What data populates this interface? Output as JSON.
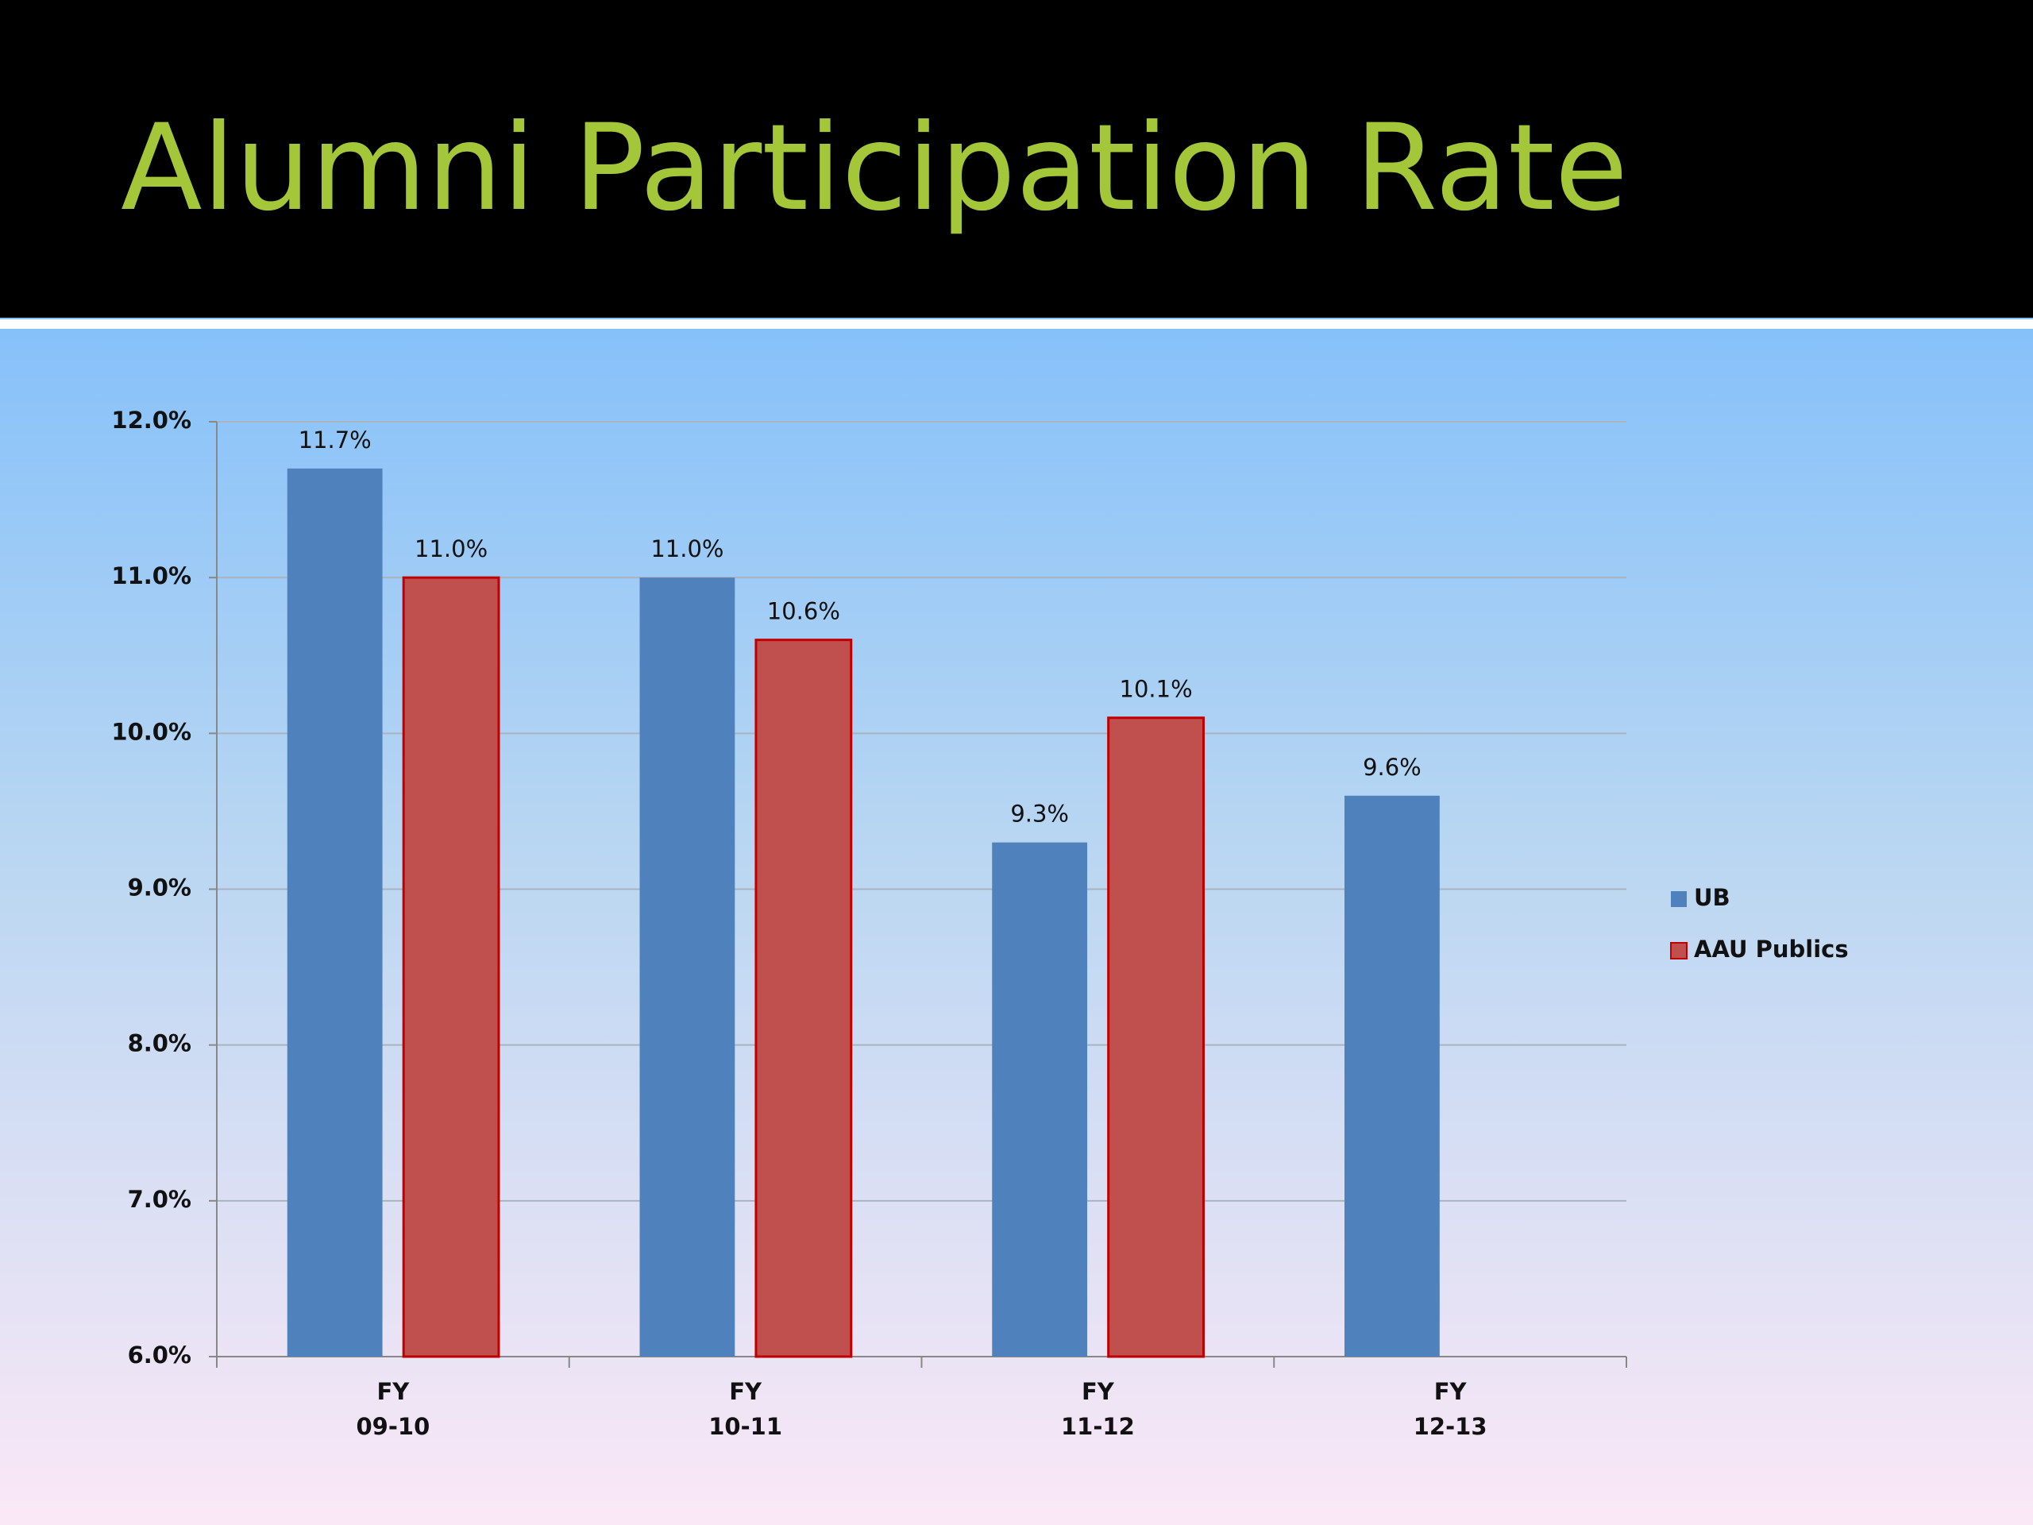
{
  "chart_data": {
    "type": "bar",
    "title": "Alumni Participation Rate",
    "categories": [
      [
        "FY",
        "09-10"
      ],
      [
        "FY",
        "10-11"
      ],
      [
        "FY",
        "11-12"
      ],
      [
        "FY",
        "12-13"
      ]
    ],
    "series": [
      {
        "name": "UB",
        "color": "#4f81bd",
        "values": [
          11.7,
          11.0,
          9.3,
          9.6
        ],
        "value_labels": [
          "11.7%",
          "11.0%",
          "9.3%",
          "9.6%"
        ]
      },
      {
        "name": "AAU Publics",
        "color": "#c0504d",
        "values": [
          11.0,
          10.6,
          10.1,
          null
        ],
        "value_labels": [
          "11.0%",
          "10.6%",
          "10.1%",
          null
        ]
      }
    ],
    "ylim": [
      6,
      12
    ],
    "yticks": [
      {
        "value": 6,
        "label": "6.0%"
      },
      {
        "value": 7,
        "label": "7.0%"
      },
      {
        "value": 8,
        "label": "8.0%"
      },
      {
        "value": 9,
        "label": "9.0%"
      },
      {
        "value": 10,
        "label": "10.0%"
      },
      {
        "value": 11,
        "label": "11.0%"
      },
      {
        "value": 12,
        "label": "12.0%"
      }
    ],
    "grid": true,
    "legend": "right"
  }
}
